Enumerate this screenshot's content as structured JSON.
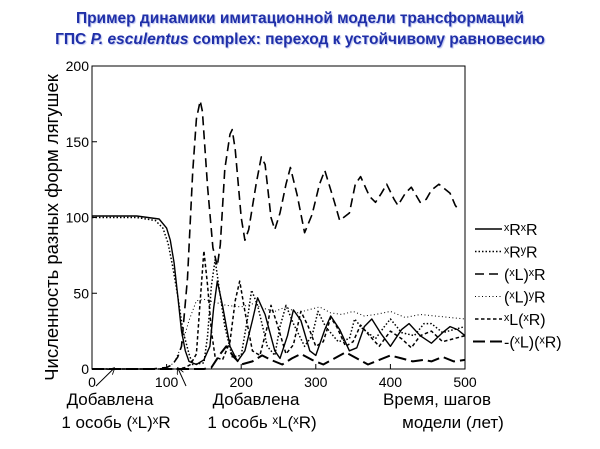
{
  "title": {
    "line1": "Пример динамики имитационной модели трансформаций",
    "line2_prefix": "ГПС ",
    "line2_italic": "P. esculentus",
    "line2_suffix": " complex: переход к устойчивому равновесию"
  },
  "chart_data": {
    "type": "line",
    "ylabel": "Численность разных форм лягушек",
    "xlabel_line1": "Время, шагов",
    "xlabel_line2": "модели (лет)",
    "xlim": [
      0,
      500
    ],
    "ylim": [
      0,
      200
    ],
    "xticks": [
      0,
      100,
      200,
      300,
      400,
      500
    ],
    "yticks": [
      0,
      50,
      100,
      150,
      200
    ],
    "grid": false,
    "legend_position": "right",
    "annotations": [
      {
        "line1": "Добавлена",
        "line2": "1 особь (ˣL)ˣR",
        "x": 30
      },
      {
        "line1": "Добавлена",
        "line2": "1 особь ˣL(ˣR)",
        "x": 115
      }
    ],
    "series": [
      {
        "name": "ˣRˣR",
        "style": "solid",
        "points": [
          [
            0,
            101
          ],
          [
            60,
            101
          ],
          [
            90,
            99
          ],
          [
            100,
            93
          ],
          [
            105,
            85
          ],
          [
            110,
            70
          ],
          [
            115,
            48
          ],
          [
            120,
            25
          ],
          [
            125,
            12
          ],
          [
            130,
            5
          ],
          [
            140,
            3
          ],
          [
            150,
            6
          ],
          [
            158,
            15
          ],
          [
            163,
            40
          ],
          [
            168,
            58
          ],
          [
            175,
            42
          ],
          [
            185,
            15
          ],
          [
            195,
            5
          ],
          [
            205,
            12
          ],
          [
            215,
            32
          ],
          [
            222,
            47
          ],
          [
            232,
            36
          ],
          [
            245,
            12
          ],
          [
            252,
            7
          ],
          [
            262,
            22
          ],
          [
            270,
            39
          ],
          [
            280,
            32
          ],
          [
            292,
            12
          ],
          [
            300,
            9
          ],
          [
            312,
            26
          ],
          [
            320,
            35
          ],
          [
            332,
            26
          ],
          [
            345,
            12
          ],
          [
            355,
            14
          ],
          [
            365,
            28
          ],
          [
            375,
            33
          ],
          [
            388,
            23
          ],
          [
            400,
            15
          ],
          [
            415,
            26
          ],
          [
            425,
            30
          ],
          [
            440,
            22
          ],
          [
            455,
            17
          ],
          [
            470,
            24
          ],
          [
            480,
            28
          ],
          [
            490,
            26
          ],
          [
            500,
            22
          ]
        ]
      },
      {
        "name": "ˣRʸR",
        "style": "dotted",
        "points": [
          [
            0,
            100
          ],
          [
            60,
            100
          ],
          [
            85,
            98
          ],
          [
            95,
            93
          ],
          [
            102,
            83
          ],
          [
            108,
            68
          ],
          [
            115,
            48
          ],
          [
            122,
            25
          ],
          [
            130,
            10
          ],
          [
            135,
            3
          ],
          [
            150,
            4
          ],
          [
            155,
            22
          ],
          [
            160,
            55
          ],
          [
            165,
            72
          ],
          [
            170,
            55
          ],
          [
            178,
            28
          ],
          [
            188,
            8
          ],
          [
            200,
            9
          ],
          [
            208,
            32
          ],
          [
            214,
            52
          ],
          [
            222,
            42
          ],
          [
            235,
            15
          ],
          [
            245,
            9
          ],
          [
            252,
            28
          ],
          [
            260,
            42
          ],
          [
            270,
            30
          ],
          [
            285,
            15
          ],
          [
            295,
            22
          ],
          [
            303,
            38
          ],
          [
            313,
            28
          ],
          [
            330,
            18
          ],
          [
            345,
            20
          ],
          [
            352,
            33
          ],
          [
            362,
            27
          ],
          [
            380,
            20
          ],
          [
            392,
            28
          ],
          [
            400,
            33
          ],
          [
            415,
            24
          ],
          [
            432,
            22
          ],
          [
            445,
            30
          ],
          [
            455,
            30
          ],
          [
            470,
            24
          ],
          [
            485,
            26
          ],
          [
            500,
            28
          ]
        ]
      },
      {
        "name": "(ˣL)ˣR",
        "style": "dashed",
        "points": [
          [
            0,
            0
          ],
          [
            80,
            0
          ],
          [
            100,
            1
          ],
          [
            108,
            3
          ],
          [
            115,
            8
          ],
          [
            120,
            15
          ],
          [
            128,
            60
          ],
          [
            135,
            130
          ],
          [
            140,
            165
          ],
          [
            145,
            177
          ],
          [
            148,
            170
          ],
          [
            155,
            120
          ],
          [
            162,
            80
          ],
          [
            168,
            68
          ],
          [
            172,
            82
          ],
          [
            178,
            132
          ],
          [
            185,
            155
          ],
          [
            188,
            158
          ],
          [
            192,
            145
          ],
          [
            200,
            100
          ],
          [
            205,
            85
          ],
          [
            210,
            92
          ],
          [
            220,
            122
          ],
          [
            227,
            140
          ],
          [
            232,
            135
          ],
          [
            240,
            100
          ],
          [
            245,
            92
          ],
          [
            252,
            103
          ],
          [
            260,
            122
          ],
          [
            266,
            133
          ],
          [
            275,
            115
          ],
          [
            285,
            90
          ],
          [
            295,
            102
          ],
          [
            305,
            122
          ],
          [
            312,
            131
          ],
          [
            325,
            110
          ],
          [
            332,
            98
          ],
          [
            345,
            103
          ],
          [
            353,
            122
          ],
          [
            360,
            127
          ],
          [
            372,
            114
          ],
          [
            380,
            110
          ],
          [
            388,
            116
          ],
          [
            395,
            122
          ],
          [
            405,
            112
          ],
          [
            410,
            108
          ],
          [
            420,
            116
          ],
          [
            428,
            120
          ],
          [
            440,
            110
          ],
          [
            448,
            112
          ],
          [
            455,
            118
          ],
          [
            465,
            122
          ],
          [
            480,
            116
          ],
          [
            487,
            108
          ],
          [
            490,
            106
          ]
        ]
      },
      {
        "name": "(ˣL)ʸR",
        "style": "fine-dotted",
        "points": [
          [
            0,
            0
          ],
          [
            90,
            0
          ],
          [
            100,
            1
          ],
          [
            110,
            4
          ],
          [
            120,
            15
          ],
          [
            130,
            32
          ],
          [
            140,
            45
          ],
          [
            150,
            46
          ],
          [
            165,
            44
          ],
          [
            180,
            42
          ],
          [
            200,
            41
          ],
          [
            215,
            43
          ],
          [
            230,
            40
          ],
          [
            245,
            38
          ],
          [
            260,
            41
          ],
          [
            275,
            37
          ],
          [
            290,
            39
          ],
          [
            305,
            41
          ],
          [
            320,
            37
          ],
          [
            335,
            36
          ],
          [
            350,
            38
          ],
          [
            365,
            35
          ],
          [
            380,
            36
          ],
          [
            400,
            38
          ],
          [
            420,
            34
          ],
          [
            440,
            36
          ],
          [
            460,
            35
          ],
          [
            480,
            34
          ],
          [
            500,
            33
          ]
        ]
      },
      {
        "name": "ˣL(ˣR)",
        "style": "short-dashed",
        "points": [
          [
            0,
            0
          ],
          [
            115,
            0
          ],
          [
            125,
            1
          ],
          [
            132,
            3
          ],
          [
            140,
            10
          ],
          [
            145,
            45
          ],
          [
            150,
            78
          ],
          [
            155,
            55
          ],
          [
            160,
            25
          ],
          [
            165,
            8
          ],
          [
            175,
            6
          ],
          [
            185,
            18
          ],
          [
            192,
            45
          ],
          [
            198,
            58
          ],
          [
            205,
            38
          ],
          [
            215,
            12
          ],
          [
            225,
            9
          ],
          [
            235,
            28
          ],
          [
            240,
            42
          ],
          [
            248,
            30
          ],
          [
            260,
            10
          ],
          [
            270,
            16
          ],
          [
            280,
            38
          ],
          [
            290,
            28
          ],
          [
            300,
            15
          ],
          [
            310,
            18
          ],
          [
            320,
            34
          ],
          [
            328,
            28
          ],
          [
            340,
            15
          ],
          [
            350,
            18
          ],
          [
            360,
            29
          ],
          [
            372,
            22
          ],
          [
            385,
            15
          ],
          [
            400,
            25
          ],
          [
            415,
            20
          ],
          [
            428,
            14
          ],
          [
            440,
            22
          ],
          [
            455,
            25
          ],
          [
            470,
            18
          ],
          [
            485,
            20
          ],
          [
            500,
            22
          ]
        ]
      },
      {
        "name": "-(ˣL)(ˣR)",
        "style": "long-dash",
        "points": [
          [
            0,
            0
          ],
          [
            150,
            0
          ],
          [
            160,
            1
          ],
          [
            172,
            10
          ],
          [
            180,
            15
          ],
          [
            190,
            8
          ],
          [
            200,
            3
          ],
          [
            215,
            5
          ],
          [
            228,
            9
          ],
          [
            240,
            6
          ],
          [
            255,
            3
          ],
          [
            268,
            7
          ],
          [
            280,
            10
          ],
          [
            295,
            6
          ],
          [
            310,
            3
          ],
          [
            325,
            7
          ],
          [
            340,
            11
          ],
          [
            355,
            7
          ],
          [
            370,
            3
          ],
          [
            385,
            6
          ],
          [
            400,
            9
          ],
          [
            415,
            7
          ],
          [
            430,
            5
          ],
          [
            445,
            6
          ],
          [
            455,
            5
          ],
          [
            470,
            8
          ],
          [
            485,
            5
          ],
          [
            500,
            6
          ]
        ]
      }
    ]
  }
}
